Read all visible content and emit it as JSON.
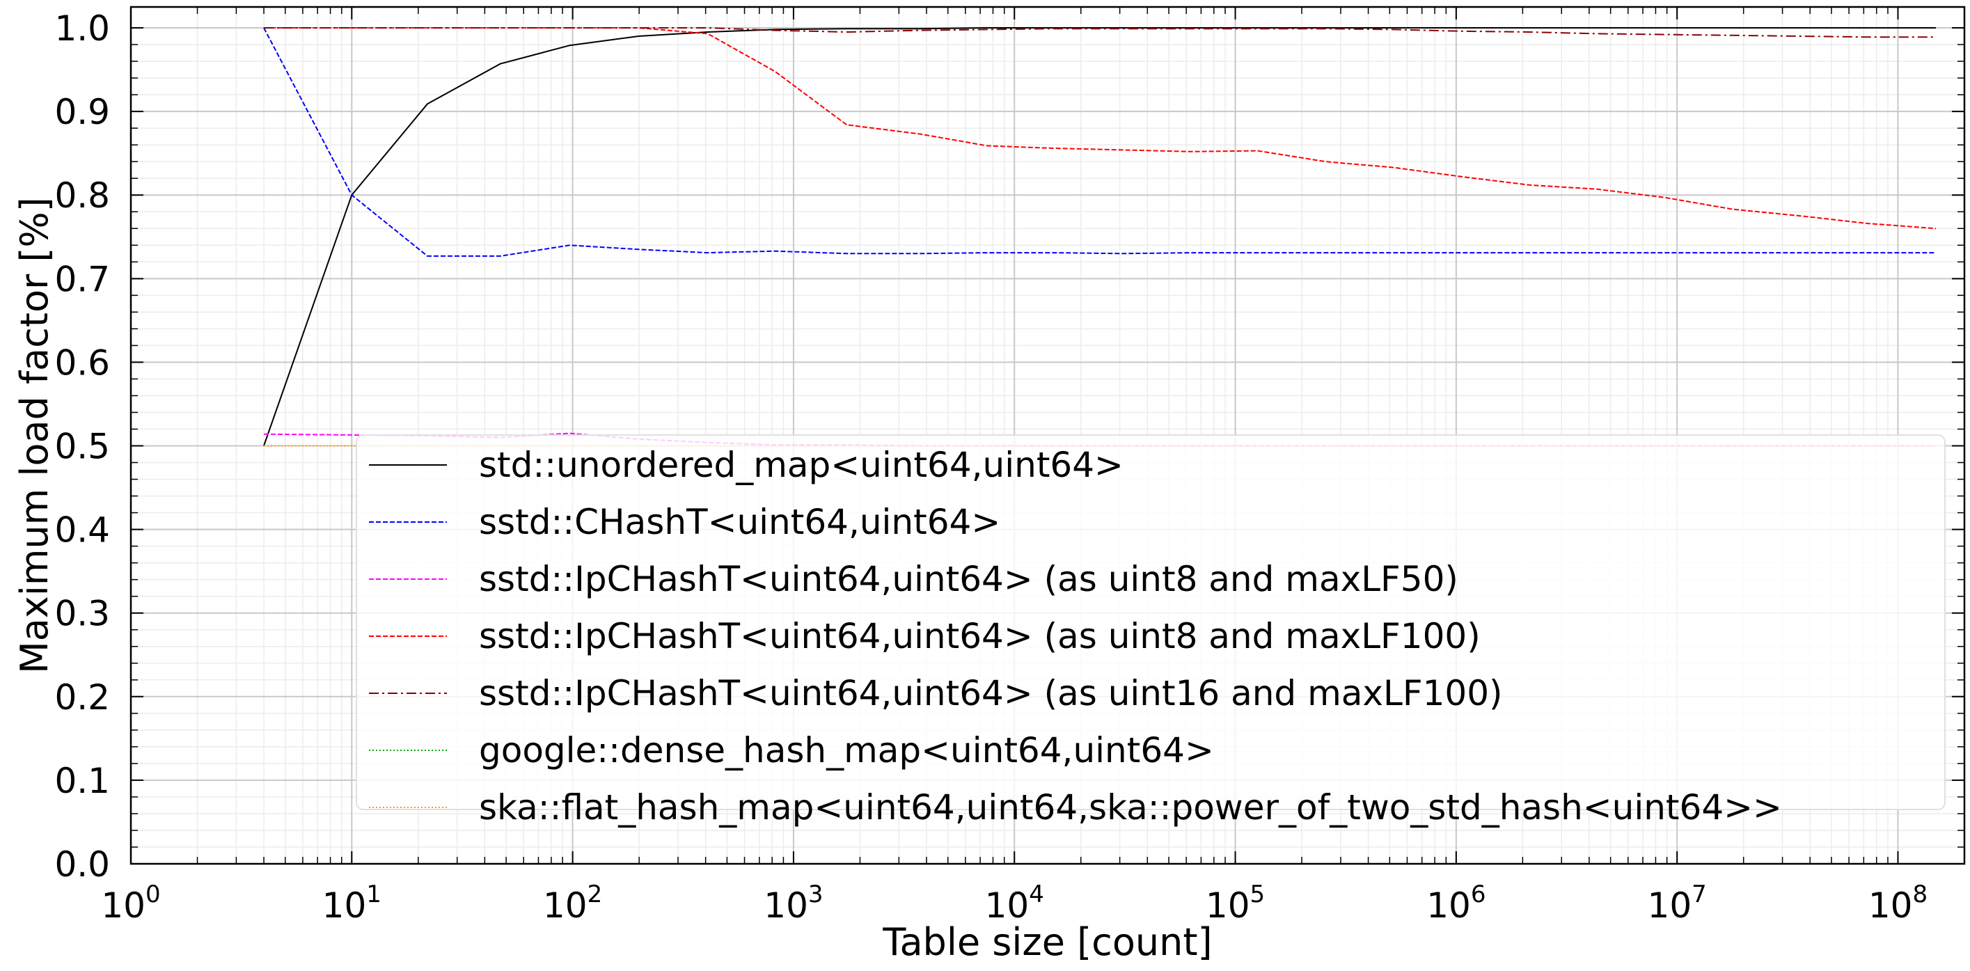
{
  "chart_data": {
    "type": "line",
    "title": "",
    "xlabel": "Table size [count]",
    "ylabel": "Maximum load factor [%]",
    "xscale": "log",
    "xlim": [
      1,
      200000000
    ],
    "ylim": [
      0,
      1.025
    ],
    "grid": true,
    "legend_position": "lower-center",
    "x_ticks": [
      {
        "base": "10",
        "exp": "0",
        "value": 1
      },
      {
        "base": "10",
        "exp": "1",
        "value": 10
      },
      {
        "base": "10",
        "exp": "2",
        "value": 100
      },
      {
        "base": "10",
        "exp": "3",
        "value": 1000
      },
      {
        "base": "10",
        "exp": "4",
        "value": 10000
      },
      {
        "base": "10",
        "exp": "5",
        "value": 100000
      },
      {
        "base": "10",
        "exp": "6",
        "value": 1000000
      },
      {
        "base": "10",
        "exp": "7",
        "value": 10000000
      },
      {
        "base": "10",
        "exp": "8",
        "value": 100000000
      }
    ],
    "y_ticks": [
      {
        "label": "0.0",
        "value": 0.0
      },
      {
        "label": "0.1",
        "value": 0.1
      },
      {
        "label": "0.2",
        "value": 0.2
      },
      {
        "label": "0.3",
        "value": 0.3
      },
      {
        "label": "0.4",
        "value": 0.4
      },
      {
        "label": "0.5",
        "value": 0.5
      },
      {
        "label": "0.6",
        "value": 0.6
      },
      {
        "label": "0.7",
        "value": 0.7
      },
      {
        "label": "0.8",
        "value": 0.8
      },
      {
        "label": "0.9",
        "value": 0.9
      },
      {
        "label": "1.0",
        "value": 1.0
      }
    ],
    "series": [
      {
        "name": "std::unordered_map<uint64,uint64>",
        "color": "#000000",
        "dash": "solid",
        "x": [
          4,
          10,
          22,
          47,
          97,
          199,
          409,
          823,
          1741,
          3739,
          7517,
          15173,
          30727,
          62233,
          126271,
          256279,
          520241,
          1056323,
          2144977,
          4355707,
          8810599,
          17851733,
          36181639,
          73362761,
          148639231
        ],
        "y": [
          0.5,
          0.8,
          0.909,
          0.957,
          0.979,
          0.99,
          0.995,
          0.998,
          0.999,
          0.999,
          1.0,
          1.0,
          1.0,
          1.0,
          1.0,
          1.0,
          1.0,
          1.0,
          1.0,
          1.0,
          1.0,
          1.0,
          1.0,
          1.0,
          1.0
        ]
      },
      {
        "name": "sstd::CHashT<uint64,uint64>",
        "color": "#0000ff",
        "dash": "dashed",
        "x": [
          4,
          10,
          22,
          47,
          97,
          199,
          409,
          823,
          1741,
          3739,
          7517,
          15173,
          30727,
          62233,
          126271,
          256279,
          520241,
          1056323,
          2144977,
          4355707,
          8810599,
          17851733,
          36181639,
          73362761,
          148639231
        ],
        "y": [
          1.0,
          0.8,
          0.727,
          0.727,
          0.74,
          0.735,
          0.731,
          0.733,
          0.73,
          0.73,
          0.731,
          0.731,
          0.73,
          0.731,
          0.731,
          0.731,
          0.731,
          0.731,
          0.731,
          0.731,
          0.731,
          0.731,
          0.731,
          0.731,
          0.731
        ]
      },
      {
        "name": "sstd::IpCHashT<uint64,uint64> (as uint8 and maxLF50)",
        "color": "#ff00ff",
        "dash": "dashed",
        "x": [
          4,
          10,
          22,
          47,
          97,
          199,
          409,
          823,
          1741,
          3739,
          7517,
          15173,
          30727,
          62233,
          126271,
          256279,
          520241,
          1056323,
          2144977,
          4355707,
          8810599,
          17851733,
          36181639,
          73362761,
          148639231
        ],
        "y": [
          0.514,
          0.513,
          0.512,
          0.51,
          0.515,
          0.508,
          0.504,
          0.501,
          0.501,
          0.5,
          0.5,
          0.5,
          0.5,
          0.5,
          0.5,
          0.5,
          0.5,
          0.5,
          0.5,
          0.5,
          0.5,
          0.5,
          0.5,
          0.5,
          0.5
        ]
      },
      {
        "name": "sstd::IpCHashT<uint64,uint64> (as uint8 and maxLF100)",
        "color": "#ff0000",
        "dash": "dashed",
        "x": [
          4,
          10,
          22,
          47,
          97,
          199,
          409,
          823,
          1741,
          3739,
          7517,
          15173,
          30727,
          62233,
          126271,
          256279,
          520241,
          1056323,
          2144977,
          4355707,
          8810599,
          17851733,
          36181639,
          73362761,
          148639231
        ],
        "y": [
          1.0,
          1.0,
          1.0,
          1.0,
          1.0,
          1.0,
          0.993,
          0.948,
          0.884,
          0.873,
          0.859,
          0.856,
          0.854,
          0.852,
          0.853,
          0.84,
          0.833,
          0.822,
          0.812,
          0.807,
          0.797,
          0.783,
          0.775,
          0.766,
          0.76
        ]
      },
      {
        "name": "sstd::IpCHashT<uint64,uint64> (as uint16 and maxLF100)",
        "color": "#8b0000",
        "dash": "dashdot",
        "x": [
          4,
          10,
          22,
          47,
          97,
          199,
          409,
          823,
          1741,
          3739,
          7517,
          15173,
          30727,
          62233,
          126271,
          256279,
          520241,
          1056323,
          2144977,
          4355707,
          8810599,
          17851733,
          36181639,
          73362761,
          148639231
        ],
        "y": [
          1.0,
          1.0,
          1.0,
          1.0,
          1.0,
          1.0,
          1.0,
          0.997,
          0.995,
          0.997,
          0.998,
          0.999,
          0.999,
          0.999,
          0.999,
          0.999,
          0.998,
          0.996,
          0.995,
          0.993,
          0.992,
          0.991,
          0.99,
          0.989,
          0.989
        ]
      },
      {
        "name": "google::dense_hash_map<uint64,uint64>",
        "color": "#00aa00",
        "dash": "dotted",
        "x": [
          4,
          10,
          22,
          47,
          97,
          199,
          409,
          823,
          1741,
          3739,
          7517,
          15173,
          30727,
          62233,
          126271,
          256279,
          520241,
          1056323,
          2144977,
          4355707,
          8810599,
          17851733,
          36181639,
          73362761,
          148639231
        ],
        "y": [
          0.5,
          0.5,
          0.5,
          0.5,
          0.5,
          0.5,
          0.5,
          0.5,
          0.5,
          0.5,
          0.5,
          0.5,
          0.5,
          0.5,
          0.5,
          0.5,
          0.5,
          0.5,
          0.5,
          0.5,
          0.5,
          0.5,
          0.5,
          0.5,
          0.5
        ]
      },
      {
        "name": "ska::flat_hash_map<uint64,uint64,ska::power_of_two_std_hash<uint64>>",
        "color": "#ff9900",
        "dash": "dotted",
        "x": [
          4,
          10,
          22,
          47,
          97,
          199,
          409,
          823,
          1741,
          3739,
          7517,
          15173,
          30727,
          62233,
          126271,
          256279,
          520241,
          1056323,
          2144977,
          4355707,
          8810599,
          17851733,
          36181639,
          73362761,
          148639231
        ],
        "y": [
          0.5,
          0.5,
          0.5,
          0.5,
          0.5,
          0.5,
          0.5,
          0.5,
          0.5,
          0.5,
          0.5,
          0.5,
          0.5,
          0.5,
          0.5,
          0.5,
          0.5,
          0.5,
          0.5,
          0.5,
          0.5,
          0.5,
          0.5,
          0.5,
          0.5
        ]
      }
    ]
  }
}
